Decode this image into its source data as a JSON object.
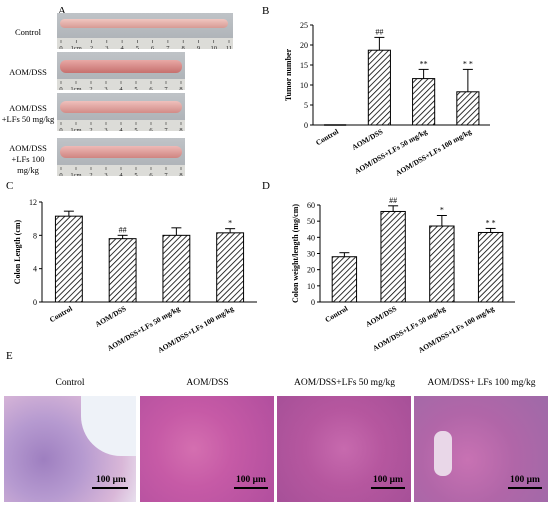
{
  "panels": {
    "a": {
      "letter": "A",
      "rows": [
        {
          "label": "Control",
          "ruler_ticks": [
            "0",
            "1cm",
            "2",
            "3",
            "4",
            "5",
            "6",
            "7",
            "8",
            "9",
            "10",
            "11"
          ]
        },
        {
          "label": "AOM/DSS",
          "ruler_ticks": [
            "0",
            "1cm",
            "2",
            "3",
            "4",
            "5",
            "6",
            "7",
            "8"
          ]
        },
        {
          "label": "AOM/DSS\n+LFs 50 mg/kg",
          "ruler_ticks": [
            "0",
            "1cm",
            "2",
            "3",
            "4",
            "5",
            "6",
            "7",
            "8"
          ]
        },
        {
          "label": "AOM/DSS\n+LFs 100 mg/kg",
          "ruler_ticks": [
            "0",
            "1cm",
            "2",
            "3",
            "4",
            "5",
            "6",
            "7",
            "8"
          ]
        }
      ]
    },
    "b": {
      "letter": "B"
    },
    "c": {
      "letter": "C"
    },
    "d": {
      "letter": "D"
    },
    "e": {
      "letter": "E",
      "titles": [
        "Control",
        "AOM/DSS",
        "AOM/DSS+LFs 50 mg/kg",
        "AOM/DSS+ LFs 100 mg/kg"
      ],
      "scale_label": "100 μm"
    }
  },
  "chart_data": [
    {
      "type": "bar",
      "panel": "B",
      "ylabel": "Tumor number",
      "ylim": [
        0,
        25
      ],
      "yticks": [
        0,
        5,
        10,
        15,
        20,
        25
      ],
      "categories": [
        "Control",
        "AOM/DSS",
        "AOM/DSS+LFs 50 mg/kg",
        "AOM/DSS+LFs 100 mg/kg"
      ],
      "values": [
        0,
        18.7,
        11.6,
        8.3
      ],
      "errors": [
        0,
        3.2,
        2.3,
        5.6
      ],
      "annotations": [
        "",
        "##",
        "**",
        "* *"
      ],
      "fill": "hatched"
    },
    {
      "type": "bar",
      "panel": "C",
      "ylabel": "Colon Length (cm)",
      "ylim": [
        0,
        12
      ],
      "yticks": [
        0,
        4,
        8,
        12
      ],
      "categories": [
        "Control",
        "AOM/DSS",
        "AOM/DSS+LFs 50 mg/kg",
        "AOM/DSS+LFs 100 mg/kg"
      ],
      "values": [
        10.3,
        7.6,
        8.0,
        8.3
      ],
      "errors": [
        0.6,
        0.4,
        0.9,
        0.5
      ],
      "annotations": [
        "",
        "##",
        "",
        "*"
      ],
      "fill": "hatched"
    },
    {
      "type": "bar",
      "panel": "D",
      "ylabel": "Colon weight/length (mg/cm)",
      "ylim": [
        0,
        60
      ],
      "yticks": [
        0,
        10,
        20,
        30,
        40,
        50,
        60
      ],
      "categories": [
        "Control",
        "AOM/DSS",
        "AOM/DSS+LFs 50 mg/kg",
        "AOM/DSS+LFs 100 mg/kg"
      ],
      "values": [
        28,
        56,
        47,
        43
      ],
      "errors": [
        2.5,
        3.5,
        6.5,
        2.5
      ],
      "annotations": [
        "",
        "##",
        "*",
        "* *"
      ],
      "fill": "hatched"
    }
  ]
}
